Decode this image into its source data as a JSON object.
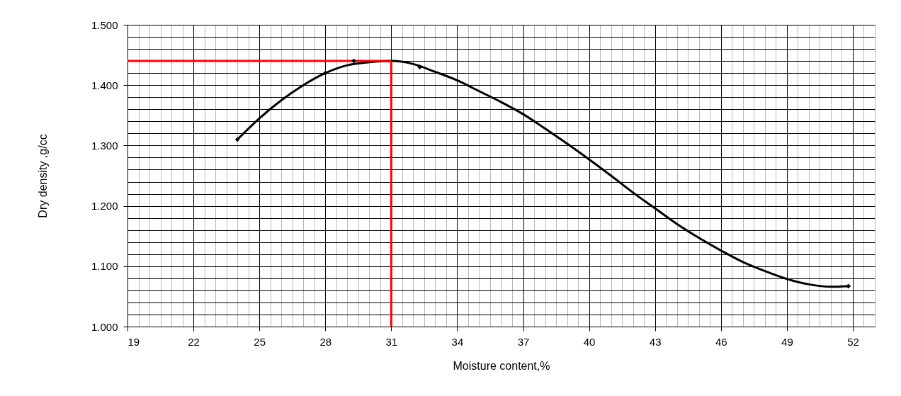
{
  "chart_data": {
    "type": "line",
    "xlabel": "Moisture content,%",
    "ylabel": "Dry density ,g/cc",
    "grid": true,
    "xlim": [
      19,
      53
    ],
    "ylim": [
      1.0,
      1.5
    ],
    "xticks": [
      19,
      {
        "value": 19.5,
        "label": null
      },
      {
        "value": 20,
        "label": null
      },
      {
        "value": 20.5,
        "label": null
      },
      {
        "value": 21,
        "label": null
      },
      {
        "value": 21.5,
        "label": null
      },
      22,
      {
        "value": 22.5,
        "label": null
      },
      {
        "value": 23,
        "label": null
      },
      {
        "value": 23.5,
        "label": null
      },
      {
        "value": 24,
        "label": null
      },
      {
        "value": 24.5,
        "label": null
      },
      25,
      {
        "value": 25.5,
        "label": null
      },
      {
        "value": 26,
        "label": null
      },
      {
        "value": 26.5,
        "label": null
      },
      {
        "value": 27,
        "label": null
      },
      {
        "value": 27.5,
        "label": null
      },
      28,
      {
        "value": 28.5,
        "label": null
      },
      {
        "value": 29,
        "label": null
      },
      {
        "value": 29.5,
        "label": null
      },
      {
        "value": 30,
        "label": null
      },
      {
        "value": 30.5,
        "label": null
      },
      31,
      {
        "value": 31.5,
        "label": null
      },
      {
        "value": 32,
        "label": null
      },
      {
        "value": 32.5,
        "label": null
      },
      {
        "value": 33,
        "label": null
      },
      {
        "value": 33.5,
        "label": null
      },
      34,
      {
        "value": 34.5,
        "label": null
      },
      {
        "value": 35,
        "label": null
      },
      {
        "value": 35.5,
        "label": null
      },
      {
        "value": 36,
        "label": null
      },
      {
        "value": 36.5,
        "label": null
      },
      37,
      {
        "value": 37.5,
        "label": null
      },
      {
        "value": 38,
        "label": null
      },
      {
        "value": 38.5,
        "label": null
      },
      {
        "value": 39,
        "label": null
      },
      {
        "value": 39.5,
        "label": null
      },
      40,
      {
        "value": 40.5,
        "label": null
      },
      {
        "value": 41,
        "label": null
      },
      {
        "value": 41.5,
        "label": null
      },
      {
        "value": 42,
        "label": null
      },
      {
        "value": 42.5,
        "label": null
      },
      43,
      {
        "value": 43.5,
        "label": null
      },
      {
        "value": 44,
        "label": null
      },
      {
        "value": 44.5,
        "label": null
      },
      {
        "value": 45,
        "label": null
      },
      {
        "value": 45.5,
        "label": null
      },
      46,
      {
        "value": 46.5,
        "label": null
      },
      {
        "value": 47,
        "label": null
      },
      {
        "value": 47.5,
        "label": null
      },
      {
        "value": 48,
        "label": null
      },
      {
        "value": 48.5,
        "label": null
      },
      49,
      {
        "value": 49.5,
        "label": null
      },
      {
        "value": 50,
        "label": null
      },
      {
        "value": 50.5,
        "label": null
      },
      {
        "value": 51,
        "label": null
      },
      {
        "value": 51.5,
        "label": null
      },
      52,
      {
        "value": 52.5,
        "label": null
      },
      {
        "value": 53,
        "label": null
      }
    ],
    "yticks": [
      {
        "value": 1.0,
        "label": "1.000"
      },
      {
        "value": 1.02,
        "label": null
      },
      {
        "value": 1.04,
        "label": null
      },
      {
        "value": 1.06,
        "label": null
      },
      {
        "value": 1.08,
        "label": null
      },
      {
        "value": 1.1,
        "label": "1.100"
      },
      {
        "value": 1.12,
        "label": null
      },
      {
        "value": 1.14,
        "label": null
      },
      {
        "value": 1.16,
        "label": null
      },
      {
        "value": 1.18,
        "label": null
      },
      {
        "value": 1.2,
        "label": "1.200"
      },
      {
        "value": 1.22,
        "label": null
      },
      {
        "value": 1.24,
        "label": null
      },
      {
        "value": 1.26,
        "label": null
      },
      {
        "value": 1.28,
        "label": null
      },
      {
        "value": 1.3,
        "label": "1.300"
      },
      {
        "value": 1.32,
        "label": null
      },
      {
        "value": 1.34,
        "label": null
      },
      {
        "value": 1.36,
        "label": null
      },
      {
        "value": 1.38,
        "label": null
      },
      {
        "value": 1.4,
        "label": "1.400"
      },
      {
        "value": 1.42,
        "label": null
      },
      {
        "value": 1.44,
        "label": null
      },
      {
        "value": 1.46,
        "label": null
      },
      {
        "value": 1.48,
        "label": null
      },
      {
        "value": 1.5,
        "label": "1.500"
      }
    ],
    "series": [
      {
        "color": "#000000",
        "marker": "none",
        "x": [
          24,
          25,
          26,
          27,
          28,
          29,
          30,
          31,
          32,
          33,
          34,
          35,
          36,
          37,
          38,
          39,
          40,
          41,
          42,
          43,
          44,
          45,
          46,
          47,
          48,
          49,
          50,
          51,
          51.8
        ],
        "values": [
          1.31,
          1.345,
          1.375,
          1.4,
          1.42,
          1.433,
          1.438,
          1.44,
          1.435,
          1.422,
          1.408,
          1.39,
          1.372,
          1.352,
          1.328,
          1.303,
          1.277,
          1.25,
          1.222,
          1.196,
          1.17,
          1.147,
          1.126,
          1.107,
          1.092,
          1.079,
          1.07,
          1.066,
          1.067
        ]
      },
      {
        "type": "scatter",
        "color": "#000000",
        "marker": "diamond",
        "x": [
          24,
          28,
          29.3,
          32.3,
          51.8
        ],
        "values": [
          1.31,
          1.42,
          1.44,
          1.43,
          1.067
        ]
      }
    ],
    "ref_lines": [
      {
        "axis": "y",
        "value": 1.44,
        "color": "#ff0000"
      },
      {
        "axis": "x",
        "value": 31,
        "color": "#ff0000"
      }
    ]
  }
}
